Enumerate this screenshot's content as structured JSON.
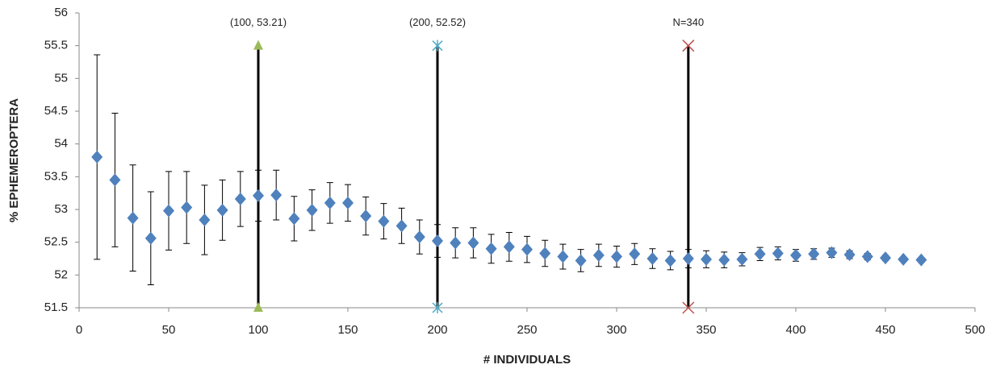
{
  "chart_data": {
    "type": "scatter",
    "x_label": "# INDIVIDUALS",
    "y_label": "% EPHEMEROPTERA",
    "xlim": [
      0,
      500
    ],
    "xticks": [
      0,
      50,
      100,
      150,
      200,
      250,
      300,
      350,
      400,
      450,
      500
    ],
    "ylim": [
      51.5,
      56
    ],
    "yticks": [
      51.5,
      52,
      52.5,
      53,
      53.5,
      54,
      54.5,
      55,
      55.5,
      56
    ],
    "grid": false,
    "series": [
      {
        "color": "#4f81bd",
        "x": [
          10,
          20,
          30,
          40,
          50,
          60,
          70,
          80,
          90,
          100,
          110,
          120,
          130,
          140,
          150,
          160,
          170,
          180,
          190,
          200,
          210,
          220,
          230,
          240,
          250,
          260,
          270,
          280,
          290,
          300,
          310,
          320,
          330,
          340,
          350,
          360,
          370,
          380,
          390,
          400,
          410,
          420,
          430,
          440,
          450,
          460,
          470
        ],
        "values": [
          53.8,
          53.45,
          52.87,
          52.56,
          52.98,
          53.03,
          52.84,
          52.99,
          53.16,
          53.21,
          53.22,
          52.86,
          52.99,
          53.1,
          53.1,
          52.9,
          52.82,
          52.75,
          52.58,
          52.52,
          52.49,
          52.49,
          52.4,
          52.43,
          52.39,
          52.33,
          52.28,
          52.22,
          52.3,
          52.28,
          52.32,
          52.25,
          52.22,
          52.25,
          52.24,
          52.23,
          52.24,
          52.32,
          52.33,
          52.3,
          52.32,
          52.34,
          52.31,
          52.28,
          52.26,
          52.24,
          52.23
        ],
        "errors": [
          1.56,
          1.02,
          0.81,
          0.71,
          0.6,
          0.55,
          0.53,
          0.46,
          0.42,
          0.39,
          0.38,
          0.34,
          0.31,
          0.31,
          0.28,
          0.29,
          0.27,
          0.27,
          0.26,
          0.25,
          0.23,
          0.23,
          0.22,
          0.22,
          0.2,
          0.2,
          0.19,
          0.17,
          0.17,
          0.16,
          0.16,
          0.15,
          0.14,
          0.14,
          0.13,
          0.12,
          0.1,
          0.1,
          0.1,
          0.09,
          0.08,
          0.07,
          0.06,
          0.05,
          0.04,
          0.03,
          0.02
        ]
      }
    ],
    "reference_lines": [
      {
        "x": 100,
        "ymin": 51.5,
        "ymax": 55.5,
        "marker": "triangle",
        "color": "#9bbb59",
        "label": "(100, 53.21)"
      },
      {
        "x": 200,
        "ymin": 51.5,
        "ymax": 55.5,
        "marker": "star",
        "color": "#4bacc6",
        "label": "(200, 52.52)"
      },
      {
        "x": 340,
        "ymin": 51.5,
        "ymax": 55.5,
        "marker": "cross",
        "color": "#c0504d",
        "label": "N=340"
      }
    ]
  }
}
